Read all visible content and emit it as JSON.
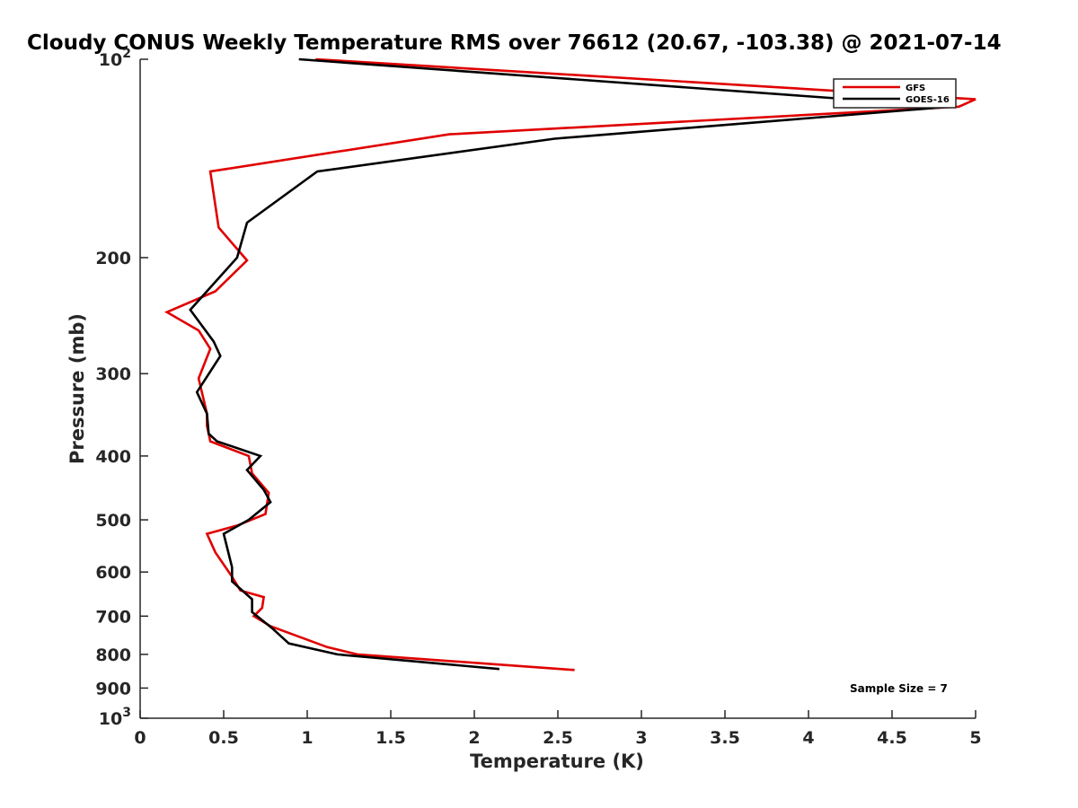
{
  "chart_data": {
    "type": "line",
    "title": "Cloudy CONUS Weekly Temperature RMS over 76612 (20.67, -103.38) @ 2021-07-14",
    "xlabel": "Temperature (K)",
    "ylabel": "Pressure (mb)",
    "xlim": [
      0,
      5
    ],
    "ylim": [
      100,
      1000
    ],
    "yscale": "log",
    "y_reversed": true,
    "grid": false,
    "legend_position": "top-right",
    "x_ticks": [
      0,
      0.5,
      1,
      1.5,
      2,
      2.5,
      3,
      3.5,
      4,
      4.5,
      5
    ],
    "x_tick_labels": [
      "0",
      "0.5",
      "1",
      "1.5",
      "2",
      "2.5",
      "3",
      "3.5",
      "4",
      "4.5",
      "5"
    ],
    "y_ticks": [
      100,
      200,
      300,
      400,
      500,
      600,
      700,
      800,
      900,
      1000
    ],
    "y_tick_labels": [
      {
        "base": "10",
        "exp": "2"
      },
      {
        "base": "200",
        "exp": ""
      },
      {
        "base": "300",
        "exp": ""
      },
      {
        "base": "400",
        "exp": ""
      },
      {
        "base": "500",
        "exp": ""
      },
      {
        "base": "600",
        "exp": ""
      },
      {
        "base": "700",
        "exp": ""
      },
      {
        "base": "800",
        "exp": ""
      },
      {
        "base": "900",
        "exp": ""
      },
      {
        "base": "10",
        "exp": "3"
      }
    ],
    "series": [
      {
        "name": "GFS",
        "color": "#e00000",
        "points": [
          [
            1.05,
            100
          ],
          [
            5.0,
            115
          ],
          [
            4.9,
            118
          ],
          [
            1.85,
            130
          ],
          [
            0.42,
            148
          ],
          [
            0.47,
            180
          ],
          [
            0.64,
            202
          ],
          [
            0.45,
            225
          ],
          [
            0.16,
            242
          ],
          [
            0.35,
            258
          ],
          [
            0.42,
            275
          ],
          [
            0.35,
            305
          ],
          [
            0.4,
            345
          ],
          [
            0.4,
            360
          ],
          [
            0.42,
            380
          ],
          [
            0.65,
            400
          ],
          [
            0.67,
            425
          ],
          [
            0.77,
            455
          ],
          [
            0.75,
            490
          ],
          [
            0.58,
            510
          ],
          [
            0.4,
            525
          ],
          [
            0.45,
            560
          ],
          [
            0.55,
            610
          ],
          [
            0.6,
            640
          ],
          [
            0.74,
            655
          ],
          [
            0.73,
            680
          ],
          [
            0.68,
            700
          ],
          [
            0.78,
            725
          ],
          [
            1.12,
            780
          ],
          [
            1.3,
            800
          ],
          [
            2.6,
            845
          ]
        ]
      },
      {
        "name": "GOES-16",
        "color": "#000000",
        "points": [
          [
            0.95,
            100
          ],
          [
            4.85,
            118
          ],
          [
            2.48,
            132
          ],
          [
            1.06,
            148
          ],
          [
            0.64,
            177
          ],
          [
            0.58,
            200
          ],
          [
            0.3,
            240
          ],
          [
            0.44,
            268
          ],
          [
            0.48,
            282
          ],
          [
            0.34,
            320
          ],
          [
            0.4,
            345
          ],
          [
            0.41,
            370
          ],
          [
            0.46,
            380
          ],
          [
            0.72,
            400
          ],
          [
            0.64,
            420
          ],
          [
            0.74,
            450
          ],
          [
            0.78,
            470
          ],
          [
            0.65,
            500
          ],
          [
            0.5,
            525
          ],
          [
            0.55,
            590
          ],
          [
            0.55,
            620
          ],
          [
            0.67,
            660
          ],
          [
            0.67,
            690
          ],
          [
            0.79,
            730
          ],
          [
            0.89,
            770
          ],
          [
            1.18,
            800
          ],
          [
            2.15,
            842
          ]
        ]
      }
    ],
    "annotations": [
      "Sample Size = 7"
    ]
  }
}
